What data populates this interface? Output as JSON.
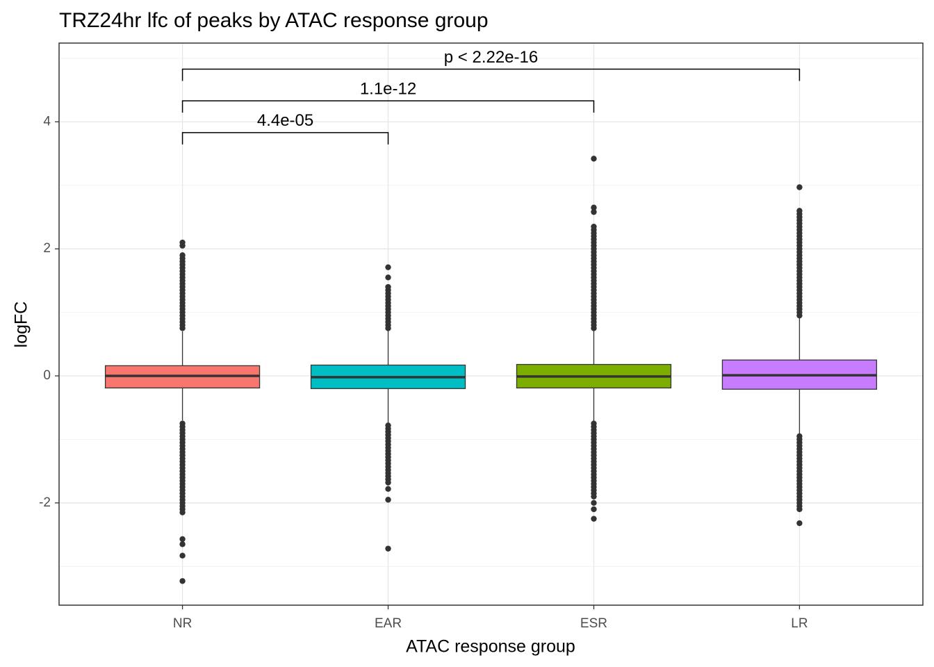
{
  "chart_data": {
    "type": "boxplot",
    "title": "TRZ24hr lfc of peaks by ATAC response group",
    "x_label": "ATAC response group",
    "y_label": "logFC",
    "categories": [
      "NR",
      "EAR",
      "ESR",
      "LR"
    ],
    "ylim": [
      -3.61,
      5.24
    ],
    "yticks": [
      -2,
      0,
      2,
      4
    ],
    "minor_yticks": [
      -3,
      -1,
      1,
      3,
      5
    ],
    "grid": true,
    "series": [
      {
        "name": "NR",
        "color": "#F8766D",
        "q1": -0.19,
        "median": 0,
        "q3": 0.16,
        "whisker_low": -0.7,
        "whisker_high": 0.7,
        "outliers": [
          0.75,
          0.8,
          0.85,
          0.9,
          0.95,
          1.0,
          1.05,
          1.1,
          1.15,
          1.2,
          1.25,
          1.3,
          1.35,
          1.4,
          1.45,
          1.5,
          1.55,
          1.6,
          1.65,
          1.7,
          1.75,
          1.8,
          1.85,
          1.9,
          2.05,
          2.1,
          -0.75,
          -0.8,
          -0.85,
          -0.9,
          -0.95,
          -1.0,
          -1.05,
          -1.1,
          -1.15,
          -1.2,
          -1.25,
          -1.3,
          -1.35,
          -1.4,
          -1.45,
          -1.5,
          -1.55,
          -1.6,
          -1.65,
          -1.7,
          -1.75,
          -1.8,
          -1.85,
          -1.9,
          -1.95,
          -2.0,
          -2.05,
          -2.1,
          -2.15,
          -2.57,
          -2.65,
          -2.83,
          -3.23
        ]
      },
      {
        "name": "EAR",
        "color": "#00BFC4",
        "q1": -0.2,
        "median": -0.02,
        "q3": 0.17,
        "whisker_low": -0.74,
        "whisker_high": 0.72,
        "outliers": [
          0.75,
          0.8,
          0.85,
          0.9,
          0.95,
          1.0,
          1.05,
          1.1,
          1.15,
          1.2,
          1.25,
          1.3,
          1.35,
          1.4,
          1.55,
          1.71,
          -0.78,
          -0.83,
          -0.88,
          -0.93,
          -0.98,
          -1.03,
          -1.08,
          -1.13,
          -1.18,
          -1.23,
          -1.28,
          -1.33,
          -1.38,
          -1.43,
          -1.48,
          -1.53,
          -1.58,
          -1.63,
          -1.68,
          -1.78,
          -1.95,
          -2.72
        ]
      },
      {
        "name": "ESR",
        "color": "#7CAE00",
        "q1": -0.19,
        "median": -0.01,
        "q3": 0.18,
        "whisker_low": -0.72,
        "whisker_high": 0.72,
        "outliers": [
          0.75,
          0.8,
          0.85,
          0.9,
          0.95,
          1.0,
          1.05,
          1.1,
          1.15,
          1.2,
          1.25,
          1.3,
          1.35,
          1.4,
          1.45,
          1.5,
          1.55,
          1.6,
          1.65,
          1.7,
          1.75,
          1.8,
          1.85,
          1.9,
          1.95,
          2.0,
          2.05,
          2.1,
          2.15,
          2.2,
          2.25,
          2.3,
          2.35,
          2.58,
          2.65,
          3.42,
          -0.75,
          -0.8,
          -0.85,
          -0.9,
          -0.95,
          -1.0,
          -1.05,
          -1.1,
          -1.15,
          -1.2,
          -1.25,
          -1.3,
          -1.35,
          -1.4,
          -1.45,
          -1.5,
          -1.55,
          -1.6,
          -1.65,
          -1.7,
          -1.75,
          -1.8,
          -1.85,
          -1.9,
          -2.0,
          -2.1,
          -2.25
        ]
      },
      {
        "name": "LR",
        "color": "#C77CFF",
        "q1": -0.21,
        "median": 0.01,
        "q3": 0.25,
        "whisker_low": -0.92,
        "whisker_high": 0.93,
        "outliers": [
          0.95,
          1.0,
          1.05,
          1.1,
          1.15,
          1.2,
          1.25,
          1.3,
          1.35,
          1.4,
          1.45,
          1.5,
          1.55,
          1.6,
          1.65,
          1.7,
          1.75,
          1.8,
          1.85,
          1.9,
          1.95,
          2.0,
          2.05,
          2.1,
          2.15,
          2.2,
          2.25,
          2.3,
          2.35,
          2.4,
          2.45,
          2.5,
          2.55,
          2.6,
          2.97,
          -0.95,
          -1.0,
          -1.05,
          -1.1,
          -1.15,
          -1.2,
          -1.25,
          -1.3,
          -1.35,
          -1.4,
          -1.45,
          -1.5,
          -1.55,
          -1.6,
          -1.65,
          -1.7,
          -1.75,
          -1.8,
          -1.85,
          -1.9,
          -1.95,
          -2.0,
          -2.05,
          -2.1,
          -2.32
        ]
      }
    ],
    "comparisons": [
      {
        "label": "4.4e-05",
        "group1": "NR",
        "group2": "EAR",
        "y": 3.83
      },
      {
        "label": "1.1e-12",
        "group1": "NR",
        "group2": "ESR",
        "y": 4.33
      },
      {
        "label": "p < 2.22e-16",
        "group1": "NR",
        "group2": "LR",
        "y": 4.83
      }
    ]
  }
}
